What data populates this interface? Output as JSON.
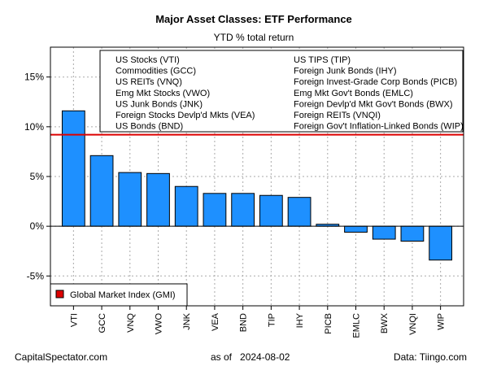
{
  "chart_data": {
    "type": "bar",
    "title": "Major Asset Classes: ETF Performance",
    "subtitle": "YTD % total return",
    "categories": [
      "VTI",
      "GCC",
      "VNQ",
      "VWO",
      "JNK",
      "VEA",
      "BND",
      "TIP",
      "IHY",
      "PICB",
      "EMLC",
      "BWX",
      "VNQI",
      "WIP"
    ],
    "values": [
      11.6,
      7.1,
      5.4,
      5.3,
      4.0,
      3.3,
      3.3,
      3.1,
      2.9,
      0.2,
      -0.6,
      -1.3,
      -1.5,
      -3.4
    ],
    "ylim": [
      -8,
      18
    ],
    "yticks": [
      -5,
      0,
      5,
      10,
      15
    ],
    "ytick_labels": [
      "-5%",
      "0%",
      "5%",
      "10%",
      "15%"
    ],
    "gmi_value": 9.2,
    "grid": true,
    "bar_color": "#1e90ff",
    "gmi_color": "#dd0000",
    "legend_left": [
      "US Stocks (VTI)",
      "Commodities (GCC)",
      "US REITs (VNQ)",
      "Emg Mkt Stocks (VWO)",
      "US Junk Bonds (JNK)",
      "Foreign Stocks Devlp'd Mkts (VEA)",
      "US Bonds (BND)"
    ],
    "legend_right": [
      "US TIPS (TIP)",
      "Foreign Junk Bonds (IHY)",
      "Foreign Invest-Grade Corp Bonds (PICB)",
      "Emg Mkt Gov't Bonds (EMLC)",
      "Foreign Devlp'd Mkt Gov't Bonds (BWX)",
      "Foreign REITs (VNQI)",
      "Foreign Gov't Inflation-Linked Bonds (WIP)"
    ],
    "gmi_legend": "Global Market Index (GMI)"
  },
  "footer": {
    "source_site": "CapitalSpectator.com",
    "as_of_label": "as of",
    "as_of_date": "2024-08-02",
    "data_source": "Data: Tiingo.com"
  }
}
